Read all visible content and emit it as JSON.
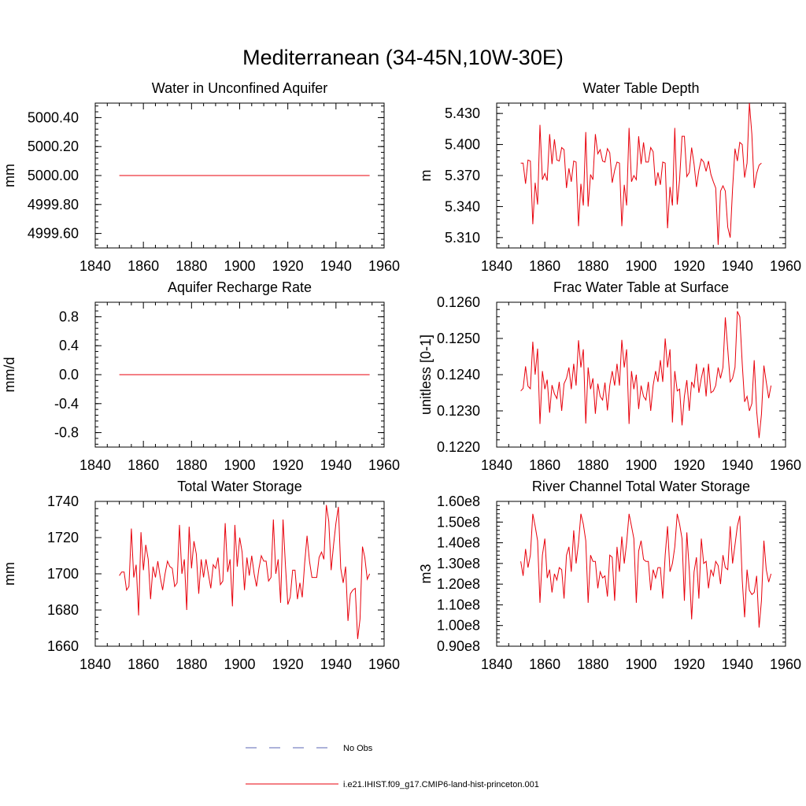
{
  "figure": {
    "title": "Mediterranean (34-45N,10W-30E)",
    "legend": [
      {
        "label": "No Obs",
        "color": "#5a64b4",
        "dash": true
      },
      {
        "label": "i.e21.IHIST.f09_g17.CMIP6-land-hist-princeton.001",
        "color": "#e8000b",
        "dash": false
      }
    ]
  },
  "chart_data": [
    {
      "type": "line",
      "title": "Water in Unconfined Aquifer",
      "xlabel": "",
      "ylabel": "mm",
      "xlim": [
        1840,
        1960
      ],
      "xticks": [
        1840,
        1860,
        1880,
        1900,
        1920,
        1940,
        1960
      ],
      "ylim": [
        4999.5,
        5000.5
      ],
      "yticks": [
        4999.6,
        4999.8,
        5000.0,
        5000.2,
        5000.4
      ],
      "ytick_labels": [
        "4999.60",
        "4999.80",
        "5000.00",
        "5000.20",
        "5000.40"
      ],
      "series": [
        {
          "name": "i.e21.IHIST.f09_g17.CMIP6-land-hist-princeton.001",
          "color": "#e8000b",
          "x": [
            1850,
            1954
          ],
          "y": [
            5000.0,
            5000.0
          ]
        }
      ]
    },
    {
      "type": "line",
      "title": "Water Table Depth",
      "xlabel": "",
      "ylabel": "m",
      "xlim": [
        1840,
        1960
      ],
      "xticks": [
        1840,
        1860,
        1880,
        1900,
        1920,
        1940,
        1960
      ],
      "ylim": [
        5.3,
        5.44
      ],
      "yticks": [
        5.31,
        5.34,
        5.37,
        5.4,
        5.43
      ],
      "ytick_labels": [
        "5.310",
        "5.340",
        "5.370",
        "5.400",
        "5.430"
      ],
      "series": [
        {
          "name": "i.e21.IHIST.f09_g17.CMIP6-land-hist-princeton.001",
          "color": "#e8000b",
          "x0": 1850,
          "y": [
            5.382,
            5.382,
            5.362,
            5.385,
            5.384,
            5.323,
            5.363,
            5.342,
            5.419,
            5.366,
            5.372,
            5.365,
            5.41,
            5.381,
            5.405,
            5.385,
            5.384,
            5.397,
            5.395,
            5.358,
            5.377,
            5.364,
            5.384,
            5.383,
            5.321,
            5.362,
            5.341,
            5.412,
            5.34,
            5.371,
            5.366,
            5.41,
            5.391,
            5.395,
            5.384,
            5.383,
            5.396,
            5.392,
            5.363,
            5.375,
            5.383,
            5.382,
            5.321,
            5.361,
            5.341,
            5.416,
            5.364,
            5.37,
            5.366,
            5.408,
            5.381,
            5.402,
            5.383,
            5.383,
            5.397,
            5.393,
            5.36,
            5.373,
            5.361,
            5.383,
            5.382,
            5.319,
            5.359,
            5.341,
            5.416,
            5.342,
            5.366,
            5.408,
            5.408,
            5.369,
            5.373,
            5.397,
            5.381,
            5.359,
            5.375,
            5.386,
            5.383,
            5.374,
            5.384,
            5.371,
            5.364,
            5.358,
            5.303,
            5.355,
            5.36,
            5.355,
            5.32,
            5.31,
            5.357,
            5.396,
            5.384,
            5.402,
            5.4,
            5.368,
            5.382,
            5.44,
            5.41,
            5.358,
            5.372,
            5.38,
            5.382
          ]
        }
      ]
    },
    {
      "type": "line",
      "title": "Aquifer Recharge Rate",
      "xlabel": "",
      "ylabel": "mm/d",
      "xlim": [
        1840,
        1960
      ],
      "xticks": [
        1840,
        1860,
        1880,
        1900,
        1920,
        1940,
        1960
      ],
      "ylim": [
        -1.0,
        1.0
      ],
      "yticks": [
        -0.8,
        -0.4,
        0.0,
        0.4,
        0.8
      ],
      "ytick_labels": [
        "-0.8",
        "-0.4",
        "0.0",
        "0.4",
        "0.8"
      ],
      "series": [
        {
          "name": "i.e21.IHIST.f09_g17.CMIP6-land-hist-princeton.001",
          "color": "#e8000b",
          "x": [
            1850,
            1954
          ],
          "y": [
            0.0,
            0.0
          ]
        }
      ]
    },
    {
      "type": "line",
      "title": "Frac Water Table at Surface",
      "xlabel": "",
      "ylabel": "unitless [0-1]",
      "xlim": [
        1840,
        1960
      ],
      "xticks": [
        1840,
        1860,
        1880,
        1900,
        1920,
        1940,
        1960
      ],
      "ylim": [
        0.122,
        0.126
      ],
      "yticks": [
        0.122,
        0.123,
        0.124,
        0.125,
        0.126
      ],
      "ytick_labels": [
        "0.1220",
        "0.1230",
        "0.1240",
        "0.1250",
        "0.1260"
      ],
      "series": [
        {
          "name": "i.e21.IHIST.f09_g17.CMIP6-land-hist-princeton.001",
          "color": "#e8000b",
          "x0": 1850,
          "y": [
            0.12355,
            0.12362,
            0.12423,
            0.12368,
            0.12361,
            0.12491,
            0.124,
            0.12472,
            0.12264,
            0.1241,
            0.1236,
            0.12386,
            0.12295,
            0.12371,
            0.12347,
            0.12334,
            0.1238,
            0.123,
            0.12375,
            0.1239,
            0.1242,
            0.1236,
            0.1243,
            0.1237,
            0.12495,
            0.1242,
            0.1247,
            0.12265,
            0.1242,
            0.1236,
            0.1239,
            0.12292,
            0.12375,
            0.1234,
            0.1233,
            0.12378,
            0.12301,
            0.1237,
            0.1241,
            0.1237,
            0.1243,
            0.1237,
            0.12496,
            0.1242,
            0.1247,
            0.12264,
            0.1241,
            0.1236,
            0.124,
            0.12305,
            0.1237,
            0.1234,
            0.1233,
            0.1238,
            0.123,
            0.1237,
            0.1241,
            0.1238,
            0.1244,
            0.1238,
            0.125,
            0.1242,
            0.1247,
            0.12268,
            0.1241,
            0.12355,
            0.1236,
            0.1226,
            0.1234,
            0.12385,
            0.123,
            0.1238,
            0.12365,
            0.1243,
            0.1235,
            0.1239,
            0.1242,
            0.1234,
            0.1243,
            0.1235,
            0.12355,
            0.1237,
            0.1242,
            0.1239,
            0.1242,
            0.12558,
            0.1247,
            0.1238,
            0.1239,
            0.1242,
            0.12575,
            0.1256,
            0.1243,
            0.12325,
            0.1234,
            0.123,
            0.1232,
            0.1244,
            0.123,
            0.12225,
            0.1229,
            0.12425,
            0.1238,
            0.12335,
            0.1237
          ]
        }
      ]
    },
    {
      "type": "line",
      "title": "Total Water Storage",
      "xlabel": "",
      "ylabel": "mm",
      "xlim": [
        1840,
        1960
      ],
      "xticks": [
        1840,
        1860,
        1880,
        1900,
        1920,
        1940,
        1960
      ],
      "ylim": [
        1660,
        1740
      ],
      "yticks": [
        1660,
        1680,
        1700,
        1720,
        1740
      ],
      "ytick_labels": [
        "1660",
        "1680",
        "1700",
        "1720",
        "1740"
      ],
      "series": [
        {
          "name": "i.e21.IHIST.f09_g17.CMIP6-land-hist-princeton.001",
          "color": "#e8000b",
          "x0": 1850,
          "y": [
            1699,
            1701,
            1701,
            1691,
            1693,
            1725,
            1698,
            1705,
            1677,
            1723,
            1702,
            1716,
            1708,
            1686,
            1704,
            1698,
            1707,
            1698,
            1691,
            1700,
            1707,
            1704,
            1703,
            1693,
            1695,
            1727,
            1700,
            1708,
            1680,
            1726,
            1703,
            1718,
            1711,
            1689,
            1708,
            1698,
            1708,
            1700,
            1692,
            1705,
            1703,
            1709,
            1694,
            1696,
            1728,
            1701,
            1708,
            1682,
            1727,
            1704,
            1720,
            1712,
            1691,
            1709,
            1699,
            1710,
            1700,
            1693,
            1703,
            1710,
            1707,
            1707,
            1696,
            1698,
            1730,
            1700,
            1708,
            1684,
            1730,
            1705,
            1683,
            1687,
            1702,
            1702,
            1686,
            1695,
            1687,
            1706,
            1721,
            1707,
            1698,
            1698,
            1698,
            1709,
            1712,
            1708,
            1738,
            1729,
            1702,
            1716,
            1728,
            1737,
            1703,
            1695,
            1704,
            1674,
            1689,
            1691,
            1692,
            1664,
            1675,
            1715,
            1709,
            1697,
            1700
          ]
        }
      ]
    },
    {
      "type": "line",
      "title": "River Channel Total Water Storage",
      "xlabel": "",
      "ylabel": "m3",
      "xlim": [
        1840,
        1960
      ],
      "xticks": [
        1840,
        1860,
        1880,
        1900,
        1920,
        1940,
        1960
      ],
      "ylim": [
        90000000.0,
        160000000.0
      ],
      "yticks": [
        90000000.0,
        100000000.0,
        110000000.0,
        120000000.0,
        130000000.0,
        140000000.0,
        150000000.0,
        160000000.0
      ],
      "ytick_labels": [
        "0.90e8",
        "1.00e8",
        "1.10e8",
        "1.20e8",
        "1.30e8",
        "1.40e8",
        "1.50e8",
        "1.60e8"
      ],
      "series": [
        {
          "name": "i.e21.IHIST.f09_g17.CMIP6-land-hist-princeton.001",
          "color": "#e8000b",
          "x0": 1850,
          "y": [
            131000000.0,
            124000000.0,
            137000000.0,
            128000000.0,
            134000000.0,
            154000000.0,
            148000000.0,
            141000000.0,
            111000000.0,
            134000000.0,
            142000000.0,
            123000000.0,
            127000000.0,
            116000000.0,
            125000000.0,
            122000000.0,
            128000000.0,
            127000000.0,
            113000000.0,
            134000000.0,
            138000000.0,
            126000000.0,
            146000000.0,
            130000000.0,
            140000000.0,
            154000000.0,
            149000000.0,
            141000000.0,
            111000000.0,
            134000000.0,
            131000000.0,
            131000000.0,
            118000000.0,
            126000000.0,
            123000000.0,
            124000000.0,
            114000000.0,
            134000000.0,
            133000000.0,
            112000000.0,
            138000000.0,
            126000000.0,
            143000000.0,
            130000000.0,
            140000000.0,
            154000000.0,
            148000000.0,
            142000000.0,
            111000000.0,
            136000000.0,
            141000000.0,
            132000000.0,
            131000000.0,
            131000000.0,
            117000000.0,
            127000000.0,
            123000000.0,
            128000000.0,
            128000000.0,
            113000000.0,
            134000000.0,
            148000000.0,
            126000000.0,
            130000000.0,
            138000000.0,
            154000000.0,
            149000000.0,
            142000000.0,
            112000000.0,
            145000000.0,
            127000000.0,
            103000000.0,
            126000000.0,
            133000000.0,
            113000000.0,
            142000000.0,
            130000000.0,
            131000000.0,
            118000000.0,
            127000000.0,
            124000000.0,
            131000000.0,
            129000000.0,
            120000000.0,
            134000000.0,
            128000000.0,
            127000000.0,
            148000000.0,
            130000000.0,
            139000000.0,
            148000000.0,
            153000000.0,
            122000000.0,
            104000000.0,
            127000000.0,
            117000000.0,
            115000000.0,
            116000000.0,
            124000000.0,
            99000000.0,
            112000000.0,
            141000000.0,
            127000000.0,
            121000000.0,
            125000000.0
          ]
        }
      ]
    }
  ]
}
